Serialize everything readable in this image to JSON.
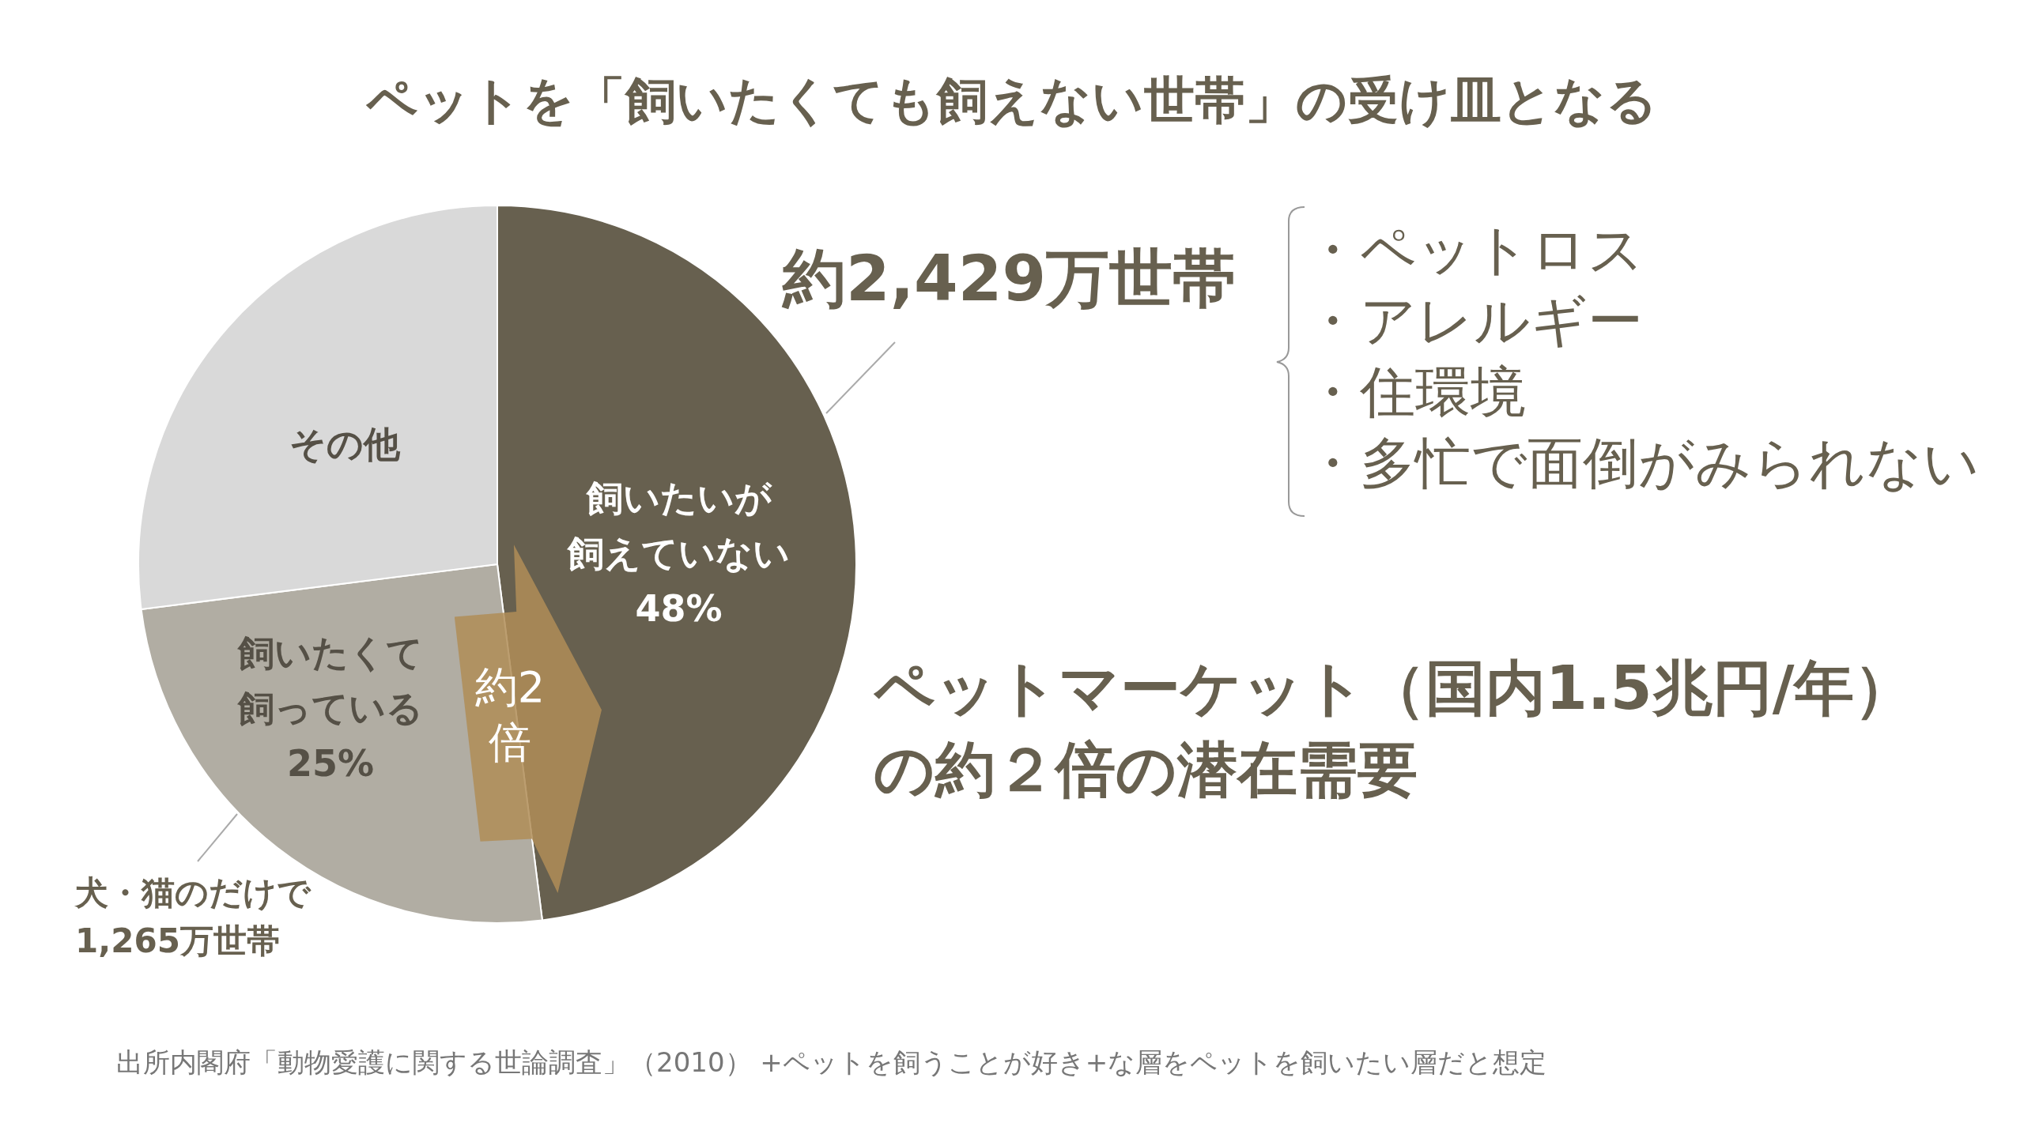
{
  "chart_data": {
    "type": "pie",
    "title": "ペットを「飼いたくても飼えない世帯」の受け皿となる",
    "categories": [
      "飼いたいが飼えていない",
      "飼いたくて飼っている",
      "その他"
    ],
    "values": [
      48,
      25,
      27
    ],
    "colors": [
      "#67604f",
      "#b1ada3",
      "#d9d9d9"
    ],
    "value_labels": [
      "48%",
      "25%",
      null
    ],
    "legend": false,
    "annotations": [
      "約2,429万世帯",
      "・ペットロス",
      "・アレルギー",
      "・住環境",
      "・多忙で面倒がみられない",
      "ペットマーケット（国内1.5兆円/年）の約２倍の潜在需要",
      "約2倍",
      "犬・猫のだけで\n1,265万世帯",
      "出所内閣府「動物愛護に関する世論調査」（2010） +ペットを飼うことが好き+な層をペットを飼いたい層だと想定"
    ]
  }
}
